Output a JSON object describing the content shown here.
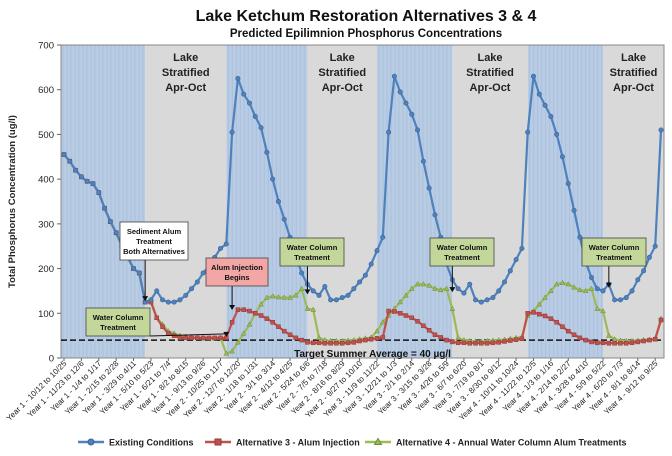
{
  "chart_data": {
    "type": "line",
    "title": "Lake Ketchum Restoration Alternatives 3 & 4",
    "subtitle": "Predicted Epilimnion Phosphorus Concentrations",
    "xlabel": "",
    "ylabel": "Total Phosphorus Concentration (ug/l)",
    "ylim": [
      0,
      700
    ],
    "yticks": [
      0,
      100,
      200,
      300,
      400,
      500,
      600,
      700
    ],
    "grid": false,
    "legend_position": "bottom",
    "n_points": 104,
    "x_tick_labels": [
      "Year 1 - 10/12 to 10/25",
      "Year 1 - 11/23 to 12/6",
      "Year 1 - 1/4 to 1/17",
      "Year 1 - 2/15 to 2/28",
      "Year 1 - 3/29 to 4/11",
      "Year 1 - 5/10 to 5/23",
      "Year 1 - 6/21 to 7/4",
      "Year 1 - 8/2 to 8/15",
      "Year 1 - 9/13 to 9/26",
      "Year 2 - 10/25 to 11/7",
      "Year 2 - 12/7 to 12/20",
      "Year 2 - 1/18 to 1/31",
      "Year 2 - 3/1 to 3/14",
      "Year 2 - 4/12 to 4/25",
      "Year 2 - 5/24 to 6/6",
      "Year 2 - 7/5 to 7/18",
      "Year 2 - 8/16 to 8/29",
      "Year 2 - 9/27 to 10/10",
      "Year 3 - 11/9 to 11/22",
      "Year 3 - 12/21 to 1/3",
      "Year 3 - 2/1 to 2/14",
      "Year 3 - 3/15 to 3/28",
      "Year 3 - 4/26 to 5/9",
      "Year 3 - 6/7 to 6/20",
      "Year 3 - 7/19 to 8/1",
      "Year 3 - 8/30 to 9/12",
      "Year 4 - 10/11 to 10/24",
      "Year 4 - 11/22 to 12/5",
      "Year 4 - 1/3 to 1/16",
      "Year 4 - 2/14 to 2/27",
      "Year 4 - 3/28 to 4/10",
      "Year 4 - 5/9 to 5/22",
      "Year 4 - 6/20 to 7/3",
      "Year 4 - 8/1 to 8/14",
      "Year 4 - 9/12 to 9/25"
    ],
    "series": [
      {
        "name": "Existing Conditions",
        "color": "#4f81bd",
        "marker": "circle",
        "values": [
          455,
          440,
          420,
          405,
          395,
          390,
          370,
          335,
          305,
          280,
          250,
          225,
          200,
          190,
          125,
          130,
          150,
          130,
          125,
          125,
          130,
          140,
          155,
          170,
          190,
          205,
          225,
          245,
          255,
          505,
          625,
          590,
          570,
          540,
          515,
          460,
          400,
          350,
          310,
          270,
          230,
          190,
          165,
          150,
          140,
          160,
          130,
          130,
          135,
          140,
          155,
          170,
          185,
          210,
          240,
          270,
          505,
          630,
          595,
          570,
          545,
          510,
          440,
          380,
          320,
          270,
          210,
          175,
          155,
          145,
          165,
          130,
          125,
          130,
          135,
          150,
          170,
          195,
          220,
          245,
          505,
          630,
          590,
          565,
          540,
          500,
          450,
          390,
          330,
          270,
          215,
          180,
          155,
          150,
          165,
          130,
          130,
          135,
          150,
          175,
          195,
          225,
          250,
          510
        ]
      },
      {
        "name": "Alternative 3 - Alum Injection",
        "color": "#c0504d",
        "marker": "square",
        "values": [
          455,
          440,
          420,
          405,
          395,
          390,
          370,
          335,
          305,
          280,
          250,
          225,
          200,
          190,
          125,
          125,
          90,
          70,
          55,
          50,
          45,
          45,
          45,
          45,
          45,
          45,
          45,
          45,
          45,
          80,
          108,
          108,
          105,
          100,
          95,
          88,
          80,
          70,
          60,
          52,
          45,
          40,
          35,
          34,
          34,
          33,
          33,
          33,
          33,
          34,
          35,
          38,
          40,
          42,
          44,
          46,
          105,
          104,
          100,
          95,
          90,
          82,
          72,
          62,
          52,
          46,
          40,
          36,
          34,
          34,
          33,
          33,
          33,
          33,
          34,
          35,
          37,
          39,
          41,
          43,
          100,
          102,
          98,
          94,
          88,
          80,
          70,
          60,
          52,
          45,
          40,
          36,
          34,
          34,
          33,
          33,
          33,
          33,
          34,
          36,
          38,
          40,
          42,
          85
        ]
      },
      {
        "name": "Alternative 4 - Annual Water Column Alum Treatments",
        "color": "#9bbb59",
        "marker": "triangle",
        "values": [
          455,
          440,
          420,
          405,
          395,
          390,
          370,
          335,
          305,
          280,
          250,
          225,
          200,
          190,
          125,
          130,
          90,
          75,
          60,
          55,
          50,
          48,
          46,
          45,
          44,
          44,
          44,
          45,
          10,
          15,
          35,
          55,
          75,
          100,
          120,
          135,
          138,
          136,
          135,
          135,
          140,
          155,
          110,
          108,
          45,
          40,
          38,
          38,
          38,
          39,
          40,
          42,
          44,
          46,
          60,
          80,
          95,
          110,
          125,
          140,
          155,
          165,
          165,
          162,
          155,
          152,
          155,
          110,
          45,
          40,
          38,
          37,
          37,
          38,
          39,
          40,
          41,
          43,
          45,
          47,
          95,
          105,
          120,
          135,
          150,
          165,
          168,
          165,
          158,
          152,
          150,
          155,
          110,
          105,
          50,
          42,
          39,
          38,
          38,
          39,
          40,
          41,
          43,
          88
        ]
      }
    ],
    "shaded_bands": [
      {
        "from": 0,
        "to": 14,
        "type": "winter"
      },
      {
        "from": 14,
        "to": 28,
        "type": "summer",
        "label_lines": [
          "Lake",
          "Stratified",
          "Apr-Oct"
        ]
      },
      {
        "from": 28,
        "to": 42,
        "type": "winter"
      },
      {
        "from": 42,
        "to": 54,
        "type": "summer",
        "label_lines": [
          "Lake",
          "Stratified",
          "Apr-Oct"
        ]
      },
      {
        "from": 54,
        "to": 67,
        "type": "winter"
      },
      {
        "from": 67,
        "to": 80,
        "type": "summer",
        "label_lines": [
          "Lake",
          "Stratified",
          "Apr-Oct"
        ]
      },
      {
        "from": 80,
        "to": 93,
        "type": "winter"
      },
      {
        "from": 93,
        "to": 103,
        "type": "summer",
        "label_lines": [
          "Lake",
          "Stratified",
          "Apr-Oct"
        ]
      }
    ],
    "target_line": {
      "value": 40,
      "label": "Target Summer Average = 40 µg/l"
    },
    "annotations": [
      {
        "lines": [
          "Sediment Alum",
          "Treatment",
          "Both Alternatives"
        ],
        "style": "white",
        "at_index": 14,
        "at_value": 125
      },
      {
        "lines": [
          "Alum Injection",
          "Begins"
        ],
        "style": "red",
        "at_index": 29,
        "at_value": 105
      },
      {
        "lines": [
          "Water Column",
          "Treatment"
        ],
        "style": "green",
        "at_index": 28,
        "at_value": 45
      },
      {
        "lines": [
          "Water Column",
          "Treatment"
        ],
        "style": "green",
        "at_index": 42,
        "at_value": 140
      },
      {
        "lines": [
          "Water Column",
          "Treatment"
        ],
        "style": "green",
        "at_index": 67,
        "at_value": 145
      },
      {
        "lines": [
          "Water Column",
          "Treatment"
        ],
        "style": "green",
        "at_index": 94,
        "at_value": 155
      }
    ],
    "colors": {
      "winter_band": "#b8cce4",
      "summer_band": "#d9d9d9",
      "alum_box": "#f2a6a6",
      "green_box": "#c4d79b"
    }
  }
}
